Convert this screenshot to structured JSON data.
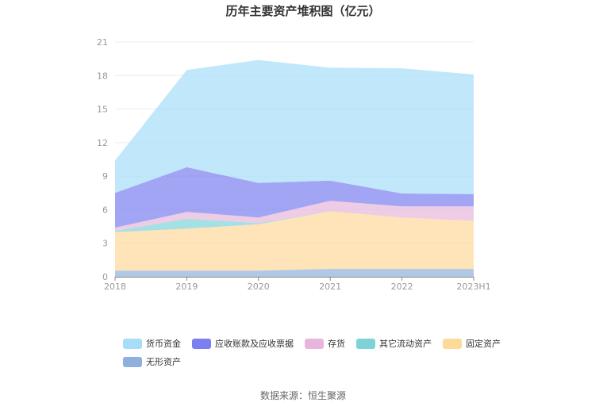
{
  "chart_data": {
    "type": "area",
    "stacked": true,
    "title": "历年主要资产堆积图（亿元）",
    "categories": [
      "2018",
      "2019",
      "2020",
      "2021",
      "2022",
      "2023H1"
    ],
    "ylim": [
      0,
      21
    ],
    "yticks": [
      0,
      3,
      6,
      9,
      12,
      15,
      18,
      21
    ],
    "grid": true,
    "legend_position": "bottom",
    "series": [
      {
        "name": "无形资产",
        "color": "#8fb0dc",
        "values": [
          0.55,
          0.55,
          0.55,
          0.7,
          0.7,
          0.7
        ]
      },
      {
        "name": "固定资产",
        "color": "#fdd99a",
        "values": [
          3.45,
          3.75,
          4.15,
          5.15,
          4.6,
          4.3
        ]
      },
      {
        "name": "其它流动资产",
        "color": "#7dd3d8",
        "values": [
          0.1,
          0.9,
          0.1,
          0.0,
          0.0,
          0.0
        ]
      },
      {
        "name": "存货",
        "color": "#e8b6dc",
        "values": [
          0.3,
          0.6,
          0.5,
          0.95,
          1.0,
          1.3
        ]
      },
      {
        "name": "应收账款及应收票据",
        "color": "#7b7ff0",
        "values": [
          3.1,
          4.0,
          3.1,
          1.8,
          1.15,
          1.1
        ]
      },
      {
        "name": "货币资金",
        "color": "#a7ddf9",
        "values": [
          2.9,
          8.7,
          11.0,
          10.1,
          11.2,
          10.7
        ]
      }
    ],
    "legend_order": [
      "货币资金",
      "应收账款及应收票据",
      "存货",
      "其它流动资产",
      "固定资产",
      "无形资产"
    ]
  },
  "source_text": "数据来源：恒生聚源"
}
